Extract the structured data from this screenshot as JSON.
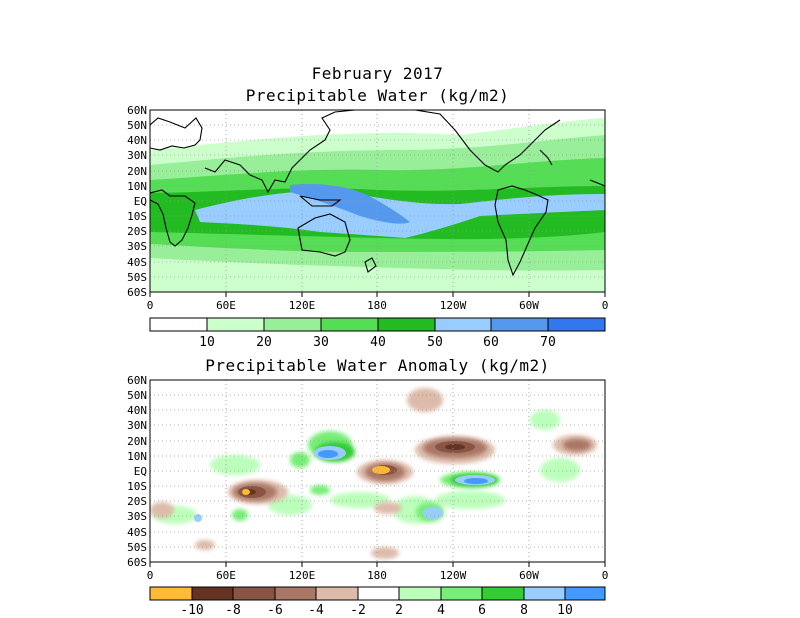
{
  "header": {
    "line1": "February 2017",
    "line2": "Precipitable Water (kg/m2)",
    "anomaly_title": "Precipitable Water Anomaly (kg/m2)"
  },
  "axes": {
    "lat_labels": [
      "60N",
      "50N",
      "40N",
      "30N",
      "20N",
      "10N",
      "EQ",
      "10S",
      "20S",
      "30S",
      "40S",
      "50S",
      "60S"
    ],
    "lon_labels": [
      "0",
      "60E",
      "120E",
      "180",
      "120W",
      "60W",
      "0"
    ]
  },
  "colorbars": {
    "pw": {
      "colors": [
        "#ffffff",
        "#ccffcc",
        "#99ee99",
        "#55dd55",
        "#22bb22",
        "#99ccff",
        "#5599ee",
        "#3377ee"
      ],
      "labels": [
        "10",
        "20",
        "30",
        "40",
        "50",
        "60",
        "70"
      ]
    },
    "anomaly": {
      "colors": [
        "#ffbb33",
        "#663322",
        "#885544",
        "#aa7766",
        "#ddbbaa",
        "#ffffff",
        "#bbffbb",
        "#77ee77",
        "#33cc33",
        "#99ccff",
        "#4499ff"
      ],
      "labels": [
        "-10",
        "-8",
        "-6",
        "-4",
        "-2",
        "2",
        "4",
        "6",
        "8",
        "10"
      ]
    }
  }
}
